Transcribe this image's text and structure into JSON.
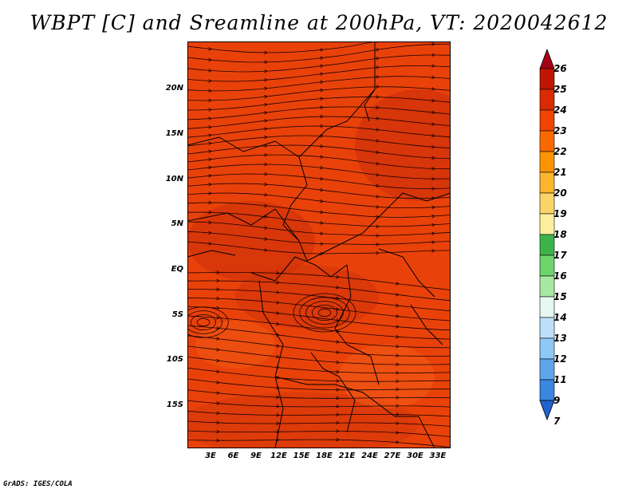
{
  "title": "WBPT [C] and Sreamline at 200hPa, VT: 2020042612",
  "footer": "GrADS: IGES/COLA",
  "lat_labels": [
    "20N",
    "15N",
    "10N",
    "5N",
    "EQ",
    "5S",
    "10S",
    "15S"
  ],
  "lon_labels": [
    "3E",
    "6E",
    "9E",
    "12E",
    "15E",
    "18E",
    "21E",
    "24E",
    "27E",
    "30E",
    "33E"
  ],
  "colorbar": {
    "labels": [
      "26",
      "25",
      "24",
      "23",
      "22",
      "21",
      "20",
      "19",
      "18",
      "17",
      "16",
      "15",
      "14",
      "13",
      "12",
      "11",
      "9",
      "7"
    ],
    "colors": [
      "#a50015",
      "#c01500",
      "#da2a00",
      "#f04500",
      "#f86a00",
      "#fb9400",
      "#fbb62e",
      "#fbd468",
      "#fcf09c",
      "#3cb44a",
      "#6ed46c",
      "#a8e8a0",
      "#e6f8f0",
      "#bce0fa",
      "#8ec8f6",
      "#5ea6ec",
      "#3a86e0",
      "#1e62d0"
    ]
  },
  "colors": {
    "field_base": "#e8420a",
    "field_dark": "#d2330a",
    "field_light": "#f05a14",
    "streamline": "#1a0000"
  }
}
